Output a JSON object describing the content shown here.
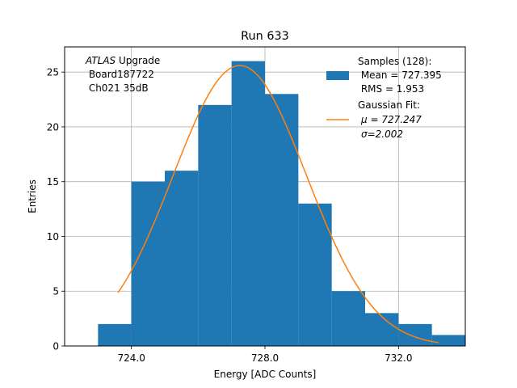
{
  "chart_data": {
    "type": "bar",
    "title": "Run 633",
    "xlabel": "Energy [ADC Counts]",
    "ylabel": "Entries",
    "xlim": [
      722.0,
      734.0
    ],
    "ylim": [
      0,
      27.3
    ],
    "xticks": [
      724.0,
      728.0,
      732.0
    ],
    "xtick_labels": [
      "724.0",
      "728.0",
      "732.0"
    ],
    "yticks": [
      0,
      5,
      10,
      15,
      20,
      25
    ],
    "ytick_labels": [
      "0",
      "5",
      "10",
      "15",
      "20",
      "25"
    ],
    "grid": true,
    "bin_edges": [
      723.0,
      724.0,
      725.0,
      726.0,
      727.0,
      728.0,
      729.0,
      730.0,
      731.0,
      732.0,
      733.0,
      734.0
    ],
    "counts": [
      2,
      15,
      16,
      22,
      26,
      23,
      13,
      5,
      3,
      2,
      1
    ],
    "bar_color": "#1f77b4",
    "fit": {
      "mu": 727.247,
      "sigma": 2.002,
      "amplitude": 25.6,
      "x_range": [
        723.6,
        733.2
      ],
      "color": "#ff7f0e"
    },
    "annotation": {
      "italic": "ATLAS",
      "line1_rest": " Upgrade",
      "line2": " Board187722",
      "line3": " Ch021 35dB"
    },
    "legend": {
      "placement": "top-right",
      "entries": [
        {
          "label_lines": [
            "Samples (128):",
            " Mean = 727.395",
            " RMS = 1.953"
          ],
          "marker": "patch",
          "color": "#1f77b4"
        },
        {
          "label_lines": [
            "Gaussian Fit:",
            "μ = 727.247",
            "σ=2.002"
          ],
          "marker": "line",
          "color": "#ff7f0e"
        }
      ]
    }
  }
}
